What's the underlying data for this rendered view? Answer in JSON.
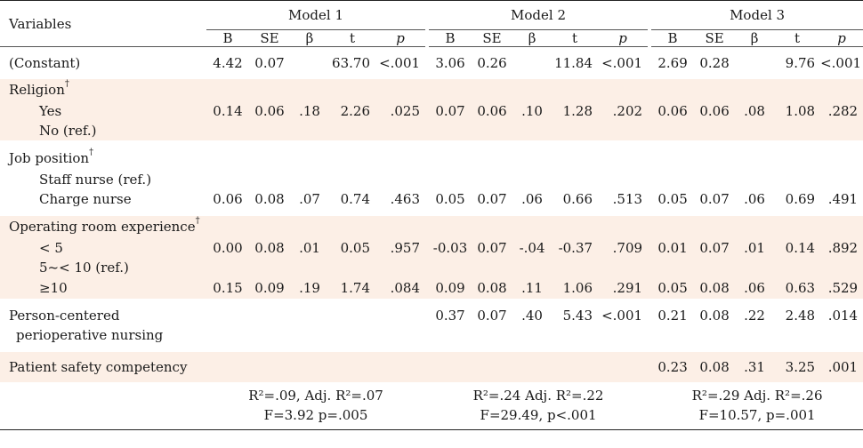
{
  "header": {
    "variables": "Variables",
    "models": [
      "Model 1",
      "Model 2",
      "Model 3"
    ],
    "cols": [
      "B",
      "SE",
      "β",
      "t",
      "p"
    ]
  },
  "rows": {
    "constant": {
      "label": "(Constant)",
      "m1": [
        "4.42",
        "0.07",
        "",
        "63.70",
        "<.001"
      ],
      "m2": [
        "3.06",
        "0.26",
        "",
        "11.84",
        "<.001"
      ],
      "m3": [
        "2.69",
        "0.28",
        "",
        "9.76",
        "<.001"
      ]
    },
    "religion": {
      "label": "Religion",
      "mark": "†",
      "yes": "Yes",
      "no": "No (ref.)",
      "m1": [
        "0.14",
        "0.06",
        ".18",
        "2.26",
        ".025"
      ],
      "m2": [
        "0.07",
        "0.06",
        ".10",
        "1.28",
        ".202"
      ],
      "m3": [
        "0.06",
        "0.06",
        ".08",
        "1.08",
        ".282"
      ]
    },
    "job": {
      "label": "Job position",
      "mark": "†",
      "staff": "Staff nurse (ref.)",
      "charge": "Charge nurse",
      "m1": [
        "0.06",
        "0.08",
        ".07",
        "0.74",
        ".463"
      ],
      "m2": [
        "0.05",
        "0.07",
        ".06",
        "0.66",
        ".513"
      ],
      "m3": [
        "0.05",
        "0.07",
        ".06",
        "0.69",
        ".491"
      ]
    },
    "orexp": {
      "label": "Operating room experience",
      "mark": "†",
      "lt5": "< 5",
      "ref": "5~< 10 (ref.)",
      "ge10": "≥10",
      "lt5_m1": [
        "0.00",
        "0.08",
        ".01",
        "0.05",
        ".957"
      ],
      "lt5_m2": [
        "-0.03",
        "0.07",
        "-.04",
        "-0.37",
        ".709"
      ],
      "lt5_m3": [
        "0.01",
        "0.07",
        ".01",
        "0.14",
        ".892"
      ],
      "ge10_m1": [
        "0.15",
        "0.09",
        ".19",
        "1.74",
        ".084"
      ],
      "ge10_m2": [
        "0.09",
        "0.08",
        ".11",
        "1.06",
        ".291"
      ],
      "ge10_m3": [
        "0.05",
        "0.08",
        ".06",
        "0.63",
        ".529"
      ]
    },
    "pcpn": {
      "label1": "Person-centered",
      "label2": "perioperative nursing",
      "m2": [
        "0.37",
        "0.07",
        ".40",
        "5.43",
        "<.001"
      ],
      "m3": [
        "0.21",
        "0.08",
        ".22",
        "2.48",
        ".014"
      ]
    },
    "psc": {
      "label": "Patient safety competency",
      "m3": [
        "0.23",
        "0.08",
        ".31",
        "3.25",
        ".001"
      ]
    }
  },
  "footer": {
    "m1_line1": "R²=.09,  Adj. R²=.07",
    "m1_line2": "F=3.92  p=.005",
    "m2_line1": "R²=.24  Adj. R²=.22",
    "m2_line2": "F=29.49,  p<.001",
    "m3_line1": "R²=.29  Adj. R²=.26",
    "m3_line2": "F=10.57,  p=.001"
  }
}
